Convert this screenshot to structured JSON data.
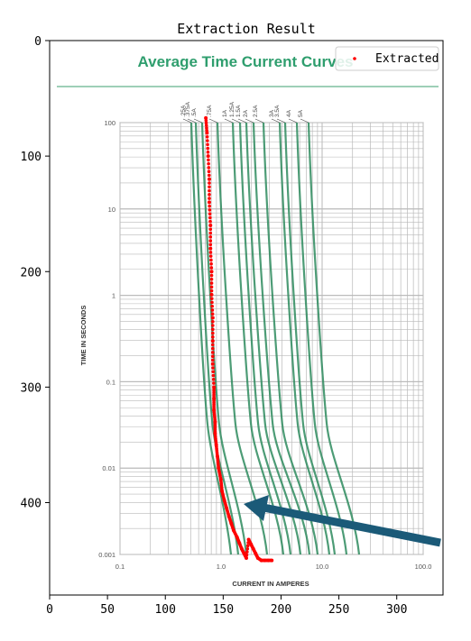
{
  "chart_data": {
    "type": "scatter",
    "title": "Extraction Result",
    "xlim": [
      0,
      340
    ],
    "ylim": [
      480,
      0
    ],
    "xticks": [
      0,
      50,
      100,
      150,
      200,
      250,
      300
    ],
    "yticks": [
      0,
      100,
      200,
      300,
      400
    ],
    "legend": {
      "placement": "top-right",
      "entries": [
        "Extracted"
      ]
    },
    "extracted_series": {
      "name": "Extracted",
      "color": "#ff0000",
      "x": [
        135,
        136,
        137,
        138,
        138,
        139,
        139,
        140,
        140,
        141,
        141,
        141,
        142,
        142,
        142,
        143,
        143,
        144,
        145,
        146,
        148,
        149,
        151,
        153,
        155,
        157,
        159,
        162,
        164,
        166,
        168,
        170,
        172,
        174,
        176,
        178,
        180,
        183,
        186,
        189,
        192
      ],
      "y": [
        67,
        80,
        100,
        120,
        140,
        160,
        180,
        200,
        220,
        240,
        260,
        280,
        300,
        310,
        320,
        330,
        340,
        350,
        360,
        370,
        380,
        390,
        398,
        405,
        412,
        418,
        424,
        430,
        435,
        440,
        444,
        448,
        432,
        436,
        440,
        444,
        448,
        450,
        450,
        450,
        450
      ]
    },
    "background_image": {
      "title": "Average Time Current Curves",
      "xlabel": "CURRENT IN AMPERES",
      "ylabel": "TIME IN SECONDS",
      "x_tick_labels": [
        "0.1",
        "1.0",
        "10.0",
        "100.0"
      ],
      "y_tick_labels": [
        "100",
        "10",
        "1",
        "0.1",
        "0.01",
        "0.001"
      ],
      "curve_labels": [
        ".25A",
        ".375A",
        ".5A",
        ".75A",
        "1A",
        "1.25A",
        "1.5A",
        "2A",
        "2.5A",
        "3A",
        "3.5A",
        "4A",
        "5A"
      ],
      "curve_color": "#2e8b5e",
      "arrow_color": "#1b5a78"
    }
  }
}
